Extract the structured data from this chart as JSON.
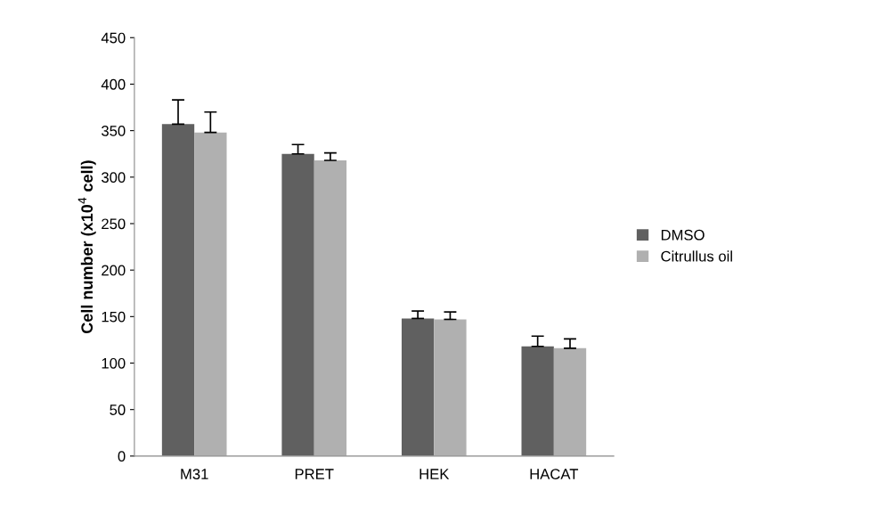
{
  "chart_data": {
    "type": "bar",
    "ylabel": "Cell number (x10$^{4}$ cell)",
    "categories": [
      "M31",
      "PRET",
      "HEK",
      "HACAT"
    ],
    "series": [
      {
        "name": "DMSO",
        "color": "#606060",
        "values": [
          357,
          325,
          148,
          118
        ],
        "errors": [
          [
            357,
            383
          ],
          [
            325,
            335
          ],
          [
            148,
            156
          ],
          [
            118,
            129
          ]
        ]
      },
      {
        "name": "Citrullus oil",
        "color": "#b0b0b0",
        "values": [
          348,
          318,
          147,
          116
        ],
        "errors": [
          [
            348,
            370
          ],
          [
            318,
            326
          ],
          [
            147,
            155
          ],
          [
            116,
            126
          ]
        ]
      }
    ],
    "ylim": [
      0,
      450
    ],
    "yticks": [
      0,
      50,
      100,
      150,
      200,
      250,
      300,
      350,
      400,
      450
    ],
    "grid": false,
    "legend": "right"
  }
}
